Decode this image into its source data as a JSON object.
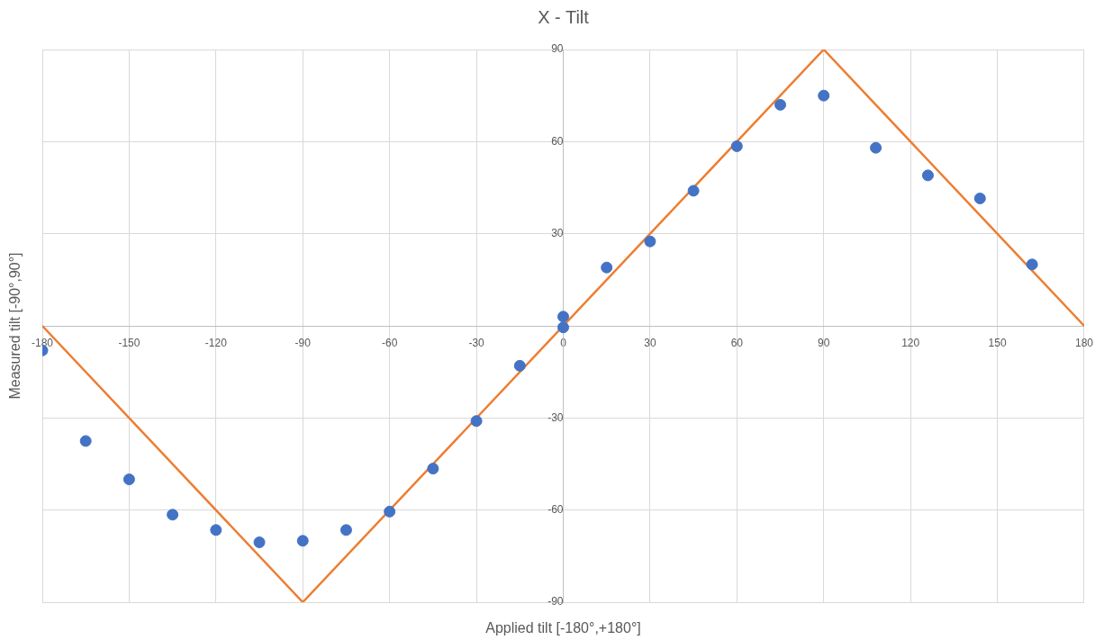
{
  "chart_data": {
    "type": "scatter",
    "title": "X - Tilt",
    "xlabel": "Applied tilt [-180°,+180°]",
    "ylabel": "Measured tilt [-90°,90°]",
    "xlim": [
      -180,
      180
    ],
    "xticks": [
      -180,
      -150,
      -120,
      -90,
      -60,
      -30,
      0,
      30,
      60,
      90,
      120,
      150,
      180
    ],
    "ylim": [
      -90,
      90
    ],
    "yticks": [
      -90,
      -60,
      -30,
      {
        "value": 0,
        "label": null
      },
      30,
      60,
      90
    ],
    "grid": true,
    "legend": false,
    "series": [
      {
        "color": "#4472c4",
        "marker": "circle",
        "x": [
          -180,
          -165,
          -150,
          -135,
          -120,
          -105,
          -90,
          -75,
          -60,
          -45,
          -30,
          -15,
          0,
          0,
          15,
          30,
          45,
          60,
          75,
          90,
          108,
          126,
          144,
          162
        ],
        "values": [
          -8,
          -37.5,
          -50,
          -61.5,
          -66.5,
          -70.5,
          -70,
          -66.5,
          -60.5,
          -46.5,
          -31,
          -13,
          3,
          -0.5,
          19,
          27.5,
          44,
          58.5,
          72,
          75,
          58,
          49,
          41.5,
          20
        ]
      },
      {
        "type": "line",
        "color": "#ed7d31",
        "marker": "none",
        "x": [
          -180,
          -90,
          90,
          180
        ],
        "values": [
          0,
          -90,
          90,
          0
        ]
      }
    ]
  }
}
